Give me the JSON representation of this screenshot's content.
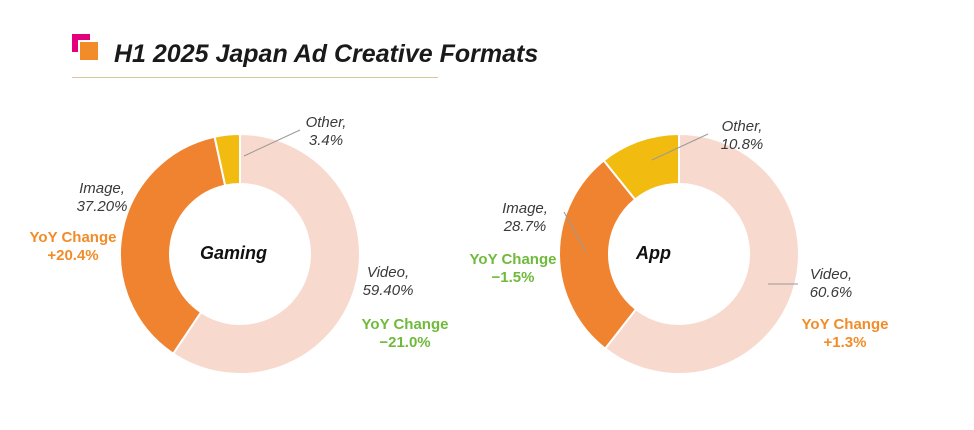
{
  "title": "H1 2025 Japan Ad Creative Formats",
  "colors": {
    "video": "#f8d9ce",
    "image": "#f0832f",
    "other": "#f2bb10",
    "yoy_positive": "#f28c28",
    "yoy_negative": "#6fba3c"
  },
  "chart_data": [
    {
      "type": "donut",
      "center_label": "Gaming",
      "slices": [
        {
          "name": "Video",
          "value": 59.4,
          "label_name": "Video,",
          "label_value": "59.40%",
          "yoy_label": "YoY Change",
          "yoy_value": "−21.0%"
        },
        {
          "name": "Image",
          "value": 37.2,
          "label_name": "Image,",
          "label_value": "37.20%",
          "yoy_label": "YoY Change",
          "yoy_value": "+20.4%"
        },
        {
          "name": "Other",
          "value": 3.4,
          "label_name": "Other,",
          "label_value": "3.4%"
        }
      ]
    },
    {
      "type": "donut",
      "center_label": "App",
      "slices": [
        {
          "name": "Video",
          "value": 60.6,
          "label_name": "Video,",
          "label_value": "60.6%",
          "yoy_label": "YoY Change",
          "yoy_value": "+1.3%"
        },
        {
          "name": "Image",
          "value": 28.7,
          "label_name": "Image,",
          "label_value": "28.7%",
          "yoy_label": "YoY Change",
          "yoy_value": "−1.5%"
        },
        {
          "name": "Other",
          "value": 10.8,
          "label_name": "Other,",
          "label_value": "10.8%"
        }
      ]
    }
  ]
}
